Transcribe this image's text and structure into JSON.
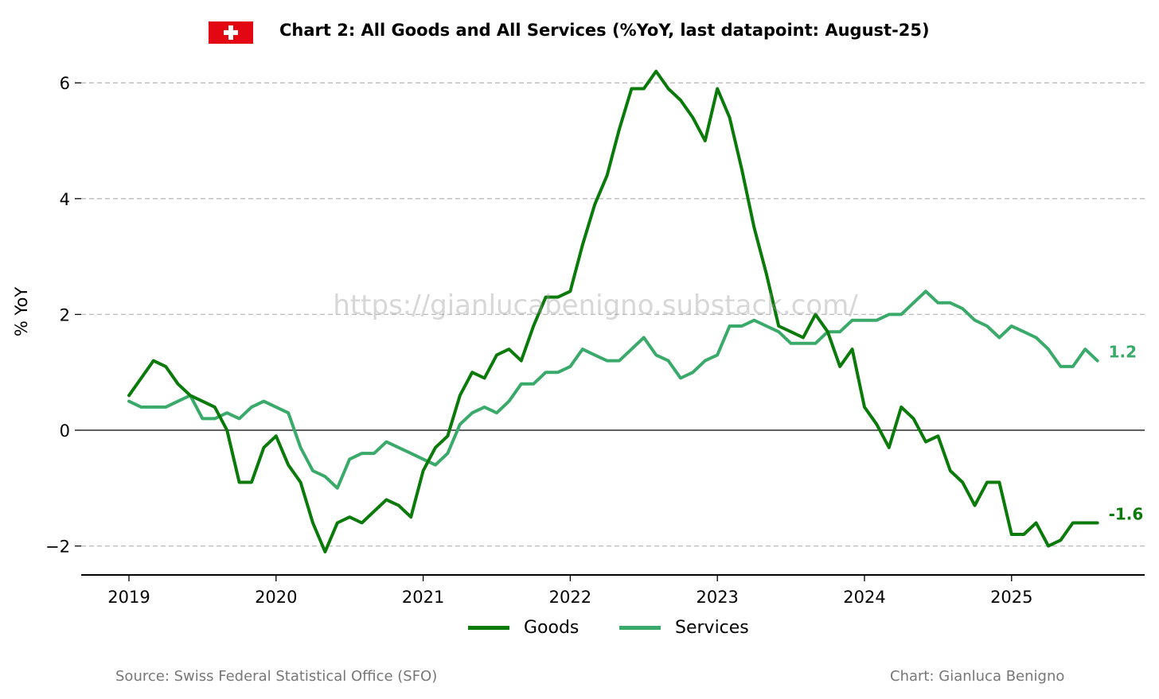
{
  "header": {
    "title": "Chart 2: All Goods and All Services (%YoY, last datapoint: August-25)",
    "flag_icon": "swiss-flag-icon"
  },
  "watermark": "https://gianlucabenigno.substack.com/",
  "footer": {
    "source": "Source: Swiss Federal Statistical Office (SFO)",
    "credit": "Chart: Gianluca Benigno"
  },
  "legend": {
    "goods": "Goods",
    "services": "Services"
  },
  "chart_data": {
    "type": "line",
    "title": "Chart 2: All Goods and All Services (%YoY, last datapoint: August-25)",
    "xlabel": "",
    "ylabel": "% YoY",
    "x_start": "2019-01",
    "x_frequency": "monthly",
    "x_ticks": [
      "2019",
      "2020",
      "2021",
      "2022",
      "2023",
      "2024",
      "2025"
    ],
    "y_ticks": [
      6,
      4,
      2,
      0,
      -2
    ],
    "y_tick_labels": [
      "6",
      "4",
      "2",
      "0",
      "−2"
    ],
    "ylim": [
      -2.5,
      6.5
    ],
    "grid": "horizontal dashed",
    "legend_position": "bottom-center",
    "series": [
      {
        "name": "Goods",
        "color": "#0a7a0a",
        "end_label": "-1.6",
        "values": [
          0.6,
          0.9,
          1.2,
          1.1,
          0.8,
          0.6,
          0.5,
          0.4,
          0.0,
          -0.9,
          -0.9,
          -0.3,
          -0.1,
          -0.6,
          -0.9,
          -1.6,
          -2.1,
          -1.6,
          -1.5,
          -1.6,
          -1.4,
          -1.2,
          -1.3,
          -1.5,
          -0.7,
          -0.3,
          -0.1,
          0.6,
          1.0,
          0.9,
          1.3,
          1.4,
          1.2,
          1.8,
          2.3,
          2.3,
          2.4,
          3.2,
          3.9,
          4.4,
          5.2,
          5.9,
          5.9,
          6.2,
          5.9,
          5.7,
          5.4,
          5.0,
          5.9,
          5.4,
          4.5,
          3.5,
          2.7,
          1.8,
          1.7,
          1.6,
          2.0,
          1.7,
          1.1,
          1.4,
          0.4,
          0.1,
          -0.3,
          0.4,
          0.2,
          -0.2,
          -0.1,
          -0.7,
          -0.9,
          -1.3,
          -0.9,
          -0.9,
          -1.8,
          -1.8,
          -1.6,
          -2.0,
          -1.9,
          -1.6,
          -1.6,
          -1.6
        ]
      },
      {
        "name": "Services",
        "color": "#3aaa6a",
        "end_label": "1.2",
        "values": [
          0.5,
          0.4,
          0.4,
          0.4,
          0.5,
          0.6,
          0.2,
          0.2,
          0.3,
          0.2,
          0.4,
          0.5,
          0.4,
          0.3,
          -0.3,
          -0.7,
          -0.8,
          -1.0,
          -0.5,
          -0.4,
          -0.4,
          -0.2,
          -0.3,
          -0.4,
          -0.5,
          -0.6,
          -0.4,
          0.1,
          0.3,
          0.4,
          0.3,
          0.5,
          0.8,
          0.8,
          1.0,
          1.0,
          1.1,
          1.4,
          1.3,
          1.2,
          1.2,
          1.4,
          1.6,
          1.3,
          1.2,
          0.9,
          1.0,
          1.2,
          1.3,
          1.8,
          1.8,
          1.9,
          1.8,
          1.7,
          1.5,
          1.5,
          1.5,
          1.7,
          1.7,
          1.9,
          1.9,
          1.9,
          2.0,
          2.0,
          2.2,
          2.4,
          2.2,
          2.2,
          2.1,
          1.9,
          1.8,
          1.6,
          1.8,
          1.7,
          1.6,
          1.4,
          1.1,
          1.1,
          1.4,
          1.2
        ]
      }
    ]
  }
}
